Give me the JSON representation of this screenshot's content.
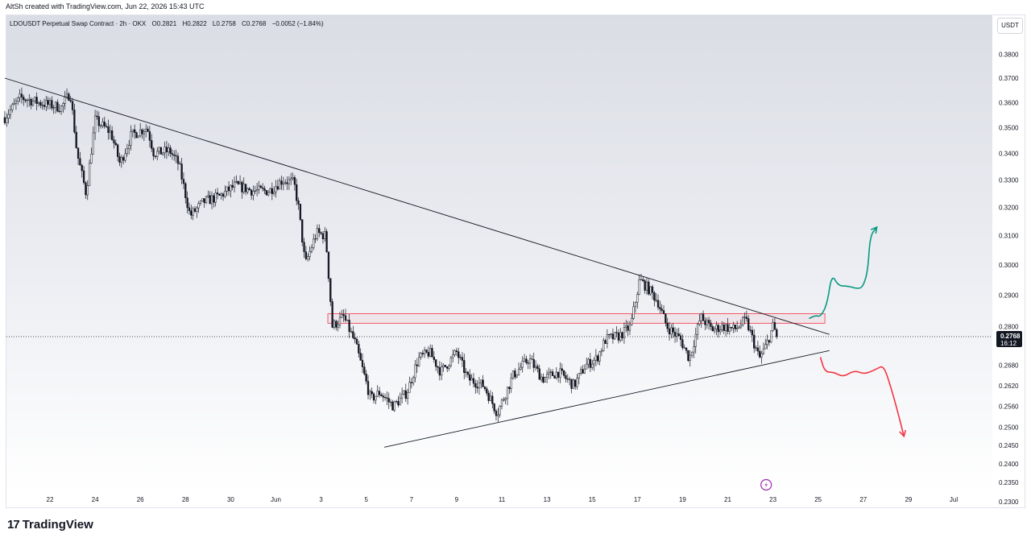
{
  "header": {
    "created_by": "AltSh created with TradingView.com, Jun 22, 2026 15:43 UTC"
  },
  "legend": {
    "symbol": "LDOUSDT Perpetual Swap Contract · 2h · OKX",
    "open": "O0.2821",
    "high": "H0.2822",
    "low": "L0.2758",
    "close": "C0.2768",
    "change": "−0.0052 (−1.84%)"
  },
  "currency_button": "USDT",
  "brand": {
    "name": "TradingView",
    "logo_text": "17"
  },
  "colors": {
    "candle": "#131722",
    "resistance_zone": "#f23645",
    "bullish_path": "#089981",
    "bearish_path": "#f23645",
    "trendline": "#131722"
  },
  "icons": {
    "lightning": "lightning-icon"
  },
  "chart_data": {
    "type": "candlestick",
    "timeframe": "2h",
    "y_axis": {
      "ticks": [
        "0.3800",
        "0.3700",
        "0.3600",
        "0.3500",
        "0.3400",
        "0.3300",
        "0.3200",
        "0.3100",
        "0.3000",
        "0.2900",
        "0.2800",
        "0.2680",
        "0.2620",
        "0.2560",
        "0.2500",
        "0.2450",
        "0.2400",
        "0.2350",
        "0.2300"
      ],
      "scale": "log"
    },
    "x_axis": {
      "ticks": [
        {
          "label": "22",
          "day": 22
        },
        {
          "label": "24",
          "day": 24
        },
        {
          "label": "26",
          "day": 26
        },
        {
          "label": "28",
          "day": 28
        },
        {
          "label": "30",
          "day": 30
        },
        {
          "label": "Jun",
          "day": 32
        },
        {
          "label": "3",
          "day": 34
        },
        {
          "label": "5",
          "day": 36
        },
        {
          "label": "7",
          "day": 38
        },
        {
          "label": "9",
          "day": 40
        },
        {
          "label": "11",
          "day": 42
        },
        {
          "label": "13",
          "day": 44
        },
        {
          "label": "15",
          "day": 46
        },
        {
          "label": "17",
          "day": 48
        },
        {
          "label": "19",
          "day": 50
        },
        {
          "label": "21",
          "day": 52
        },
        {
          "label": "23",
          "day": 54
        },
        {
          "label": "25",
          "day": 56
        },
        {
          "label": "27",
          "day": 58
        },
        {
          "label": "29",
          "day": 60
        },
        {
          "label": "Jul",
          "day": 62
        }
      ]
    },
    "last_price": {
      "value": "0.2768",
      "countdown": "16:12",
      "price": 0.2768
    },
    "price_path": [
      [
        20.0,
        0.354
      ],
      [
        20.7,
        0.362
      ],
      [
        21.5,
        0.36
      ],
      [
        22.5,
        0.358
      ],
      [
        22.9,
        0.364
      ],
      [
        23.2,
        0.34
      ],
      [
        23.6,
        0.325
      ],
      [
        24.0,
        0.353
      ],
      [
        24.7,
        0.348
      ],
      [
        25.1,
        0.336
      ],
      [
        25.6,
        0.347
      ],
      [
        26.3,
        0.35
      ],
      [
        26.6,
        0.34
      ],
      [
        27.3,
        0.341
      ],
      [
        27.7,
        0.336
      ],
      [
        28.2,
        0.317
      ],
      [
        28.8,
        0.322
      ],
      [
        29.5,
        0.324
      ],
      [
        30.2,
        0.328
      ],
      [
        31.0,
        0.326
      ],
      [
        31.7,
        0.326
      ],
      [
        32.3,
        0.33
      ],
      [
        32.8,
        0.329
      ],
      [
        33.0,
        0.32
      ],
      [
        33.3,
        0.3
      ],
      [
        33.8,
        0.311
      ],
      [
        34.2,
        0.31
      ],
      [
        34.5,
        0.28
      ],
      [
        35.0,
        0.283
      ],
      [
        35.5,
        0.275
      ],
      [
        36.2,
        0.258
      ],
      [
        36.6,
        0.26
      ],
      [
        37.2,
        0.256
      ],
      [
        37.8,
        0.26
      ],
      [
        38.3,
        0.27
      ],
      [
        38.8,
        0.272
      ],
      [
        39.3,
        0.266
      ],
      [
        40.0,
        0.272
      ],
      [
        40.5,
        0.264
      ],
      [
        41.2,
        0.262
      ],
      [
        41.8,
        0.254
      ],
      [
        42.5,
        0.265
      ],
      [
        43.2,
        0.27
      ],
      [
        43.8,
        0.264
      ],
      [
        44.5,
        0.266
      ],
      [
        45.2,
        0.262
      ],
      [
        45.7,
        0.268
      ],
      [
        46.2,
        0.27
      ],
      [
        46.6,
        0.276
      ],
      [
        47.2,
        0.277
      ],
      [
        47.7,
        0.28
      ],
      [
        48.1,
        0.295
      ],
      [
        48.5,
        0.292
      ],
      [
        48.9,
        0.288
      ],
      [
        49.3,
        0.28
      ],
      [
        49.9,
        0.276
      ],
      [
        50.3,
        0.27
      ],
      [
        50.8,
        0.283
      ],
      [
        51.3,
        0.279
      ],
      [
        51.8,
        0.28
      ],
      [
        52.3,
        0.279
      ],
      [
        52.8,
        0.282
      ],
      [
        53.1,
        0.276
      ],
      [
        53.4,
        0.27
      ],
      [
        53.7,
        0.274
      ],
      [
        54.0,
        0.28
      ],
      [
        54.2,
        0.2768
      ]
    ],
    "resistance_zone": {
      "from_day": 34.3,
      "to_day": 56.3,
      "low": 0.281,
      "high": 0.284
    },
    "descending_trendline": [
      [
        20.0,
        0.37
      ],
      [
        56.5,
        0.2775
      ]
    ],
    "ascending_trendline": [
      [
        36.8,
        0.2445
      ],
      [
        56.5,
        0.2725
      ]
    ],
    "bullish_path": [
      [
        55.6,
        0.2825
      ],
      [
        55.9,
        0.2835
      ],
      [
        56.1,
        0.283
      ],
      [
        56.4,
        0.287
      ],
      [
        56.6,
        0.297
      ],
      [
        56.9,
        0.293
      ],
      [
        57.3,
        0.293
      ],
      [
        57.8,
        0.292
      ],
      [
        58.0,
        0.293
      ],
      [
        58.2,
        0.298
      ],
      [
        58.3,
        0.31
      ],
      [
        58.6,
        0.313
      ]
    ],
    "bearish_path": [
      [
        56.1,
        0.2705
      ],
      [
        56.3,
        0.266
      ],
      [
        56.7,
        0.266
      ],
      [
        57.1,
        0.2645
      ],
      [
        57.6,
        0.2665
      ],
      [
        58.0,
        0.2655
      ],
      [
        58.3,
        0.266
      ],
      [
        58.6,
        0.267
      ],
      [
        58.9,
        0.268
      ],
      [
        59.2,
        0.262
      ],
      [
        59.5,
        0.255
      ],
      [
        59.8,
        0.2475
      ]
    ]
  }
}
